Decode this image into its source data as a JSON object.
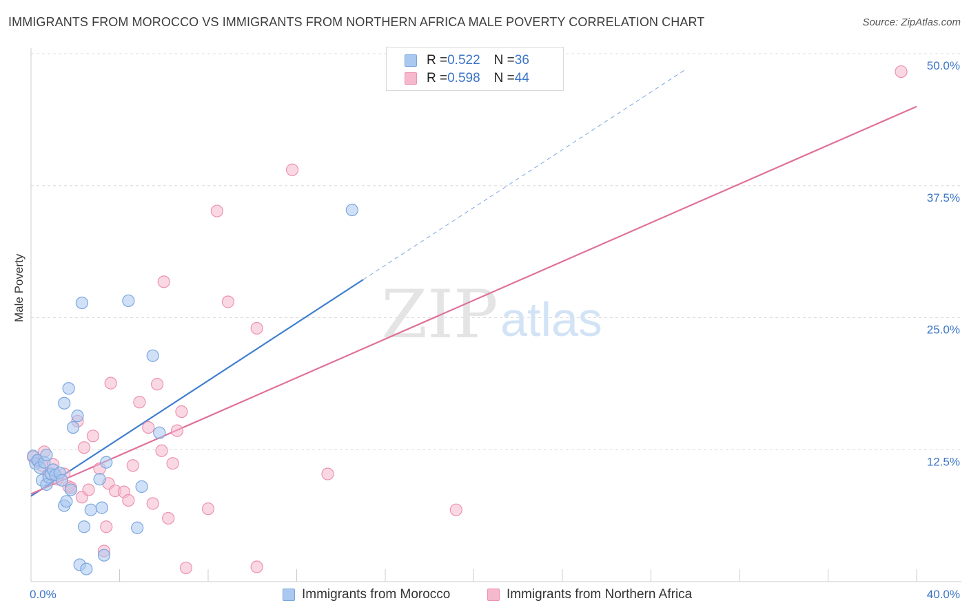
{
  "title": "IMMIGRANTS FROM MOROCCO VS IMMIGRANTS FROM NORTHERN AFRICA MALE POVERTY CORRELATION CHART",
  "source": "Source: ZipAtlas.com",
  "watermark": {
    "zip": "ZIP",
    "atlas": "atlas"
  },
  "legend": {
    "rows": [
      {
        "r_label": "R = ",
        "r_value": "0.522",
        "n_label": "N = ",
        "n_value": "36"
      },
      {
        "r_label": "R = ",
        "r_value": "0.598",
        "n_label": "N = ",
        "n_value": "44"
      }
    ]
  },
  "colors": {
    "blue_fill": "#aac8f0",
    "blue_stroke": "#7aa6de",
    "blue_line": "#3f7fd0",
    "pink_fill": "#f5b8cc",
    "pink_stroke": "#eb92b0",
    "pink_line": "#e0709a",
    "grid": "#dcdcdc",
    "tick_label": "#3a74c8"
  },
  "chart_data": {
    "type": "scatter",
    "title": "IMMIGRANTS FROM MOROCCO VS IMMIGRANTS FROM NORTHERN AFRICA MALE POVERTY CORRELATION CHART",
    "xlabel": "",
    "ylabel": "Male Poverty",
    "xlim": [
      0,
      40
    ],
    "ylim": [
      0,
      52
    ],
    "x_tick_labels": [
      "0.0%",
      "40.0%"
    ],
    "y_ticks": [
      12.5,
      25.0,
      37.5,
      50.0
    ],
    "y_tick_labels": [
      "12.5%",
      "25.0%",
      "37.5%",
      "50.0%"
    ],
    "grid": true,
    "legend_position": "top-center",
    "series": [
      {
        "name": "Immigrants from Morocco",
        "r": 0.522,
        "n": 36,
        "trend": {
          "x0": 0,
          "y0": 8.1,
          "x1": 15.0,
          "y1": 28.6,
          "dashed_to_x": 29.6
        },
        "points": [
          [
            0.1,
            11.9
          ],
          [
            0.2,
            11.2
          ],
          [
            0.3,
            11.5
          ],
          [
            0.4,
            10.8
          ],
          [
            0.5,
            9.6
          ],
          [
            0.6,
            11.3
          ],
          [
            0.7,
            12.0
          ],
          [
            0.7,
            9.2
          ],
          [
            0.8,
            9.9
          ],
          [
            0.9,
            10.2
          ],
          [
            1.0,
            10.6
          ],
          [
            1.1,
            10.1
          ],
          [
            1.3,
            10.3
          ],
          [
            1.4,
            9.6
          ],
          [
            1.5,
            7.2
          ],
          [
            1.6,
            7.6
          ],
          [
            1.8,
            8.7
          ],
          [
            1.9,
            14.6
          ],
          [
            2.1,
            15.7
          ],
          [
            1.5,
            16.9
          ],
          [
            1.7,
            18.3
          ],
          [
            2.3,
            26.4
          ],
          [
            2.4,
            5.2
          ],
          [
            2.7,
            6.8
          ],
          [
            3.1,
            9.7
          ],
          [
            3.2,
            7.0
          ],
          [
            3.4,
            11.3
          ],
          [
            2.2,
            1.6
          ],
          [
            2.5,
            1.2
          ],
          [
            3.3,
            2.5
          ],
          [
            4.4,
            26.6
          ],
          [
            4.8,
            5.1
          ],
          [
            5.0,
            9.0
          ],
          [
            5.5,
            21.4
          ],
          [
            5.8,
            14.1
          ],
          [
            14.5,
            35.2
          ]
        ]
      },
      {
        "name": "Immigrants from Northern Africa",
        "r": 0.598,
        "n": 44,
        "trend": {
          "x0": 0,
          "y0": 8.3,
          "x1": 40.0,
          "y1": 45.0
        },
        "points": [
          [
            0.1,
            11.8
          ],
          [
            0.3,
            11.4
          ],
          [
            0.5,
            11.0
          ],
          [
            0.6,
            12.3
          ],
          [
            0.8,
            10.1
          ],
          [
            1.0,
            11.1
          ],
          [
            1.2,
            9.7
          ],
          [
            1.5,
            10.2
          ],
          [
            1.7,
            9.0
          ],
          [
            1.8,
            8.9
          ],
          [
            2.1,
            15.2
          ],
          [
            2.3,
            8.0
          ],
          [
            2.4,
            12.7
          ],
          [
            2.6,
            8.7
          ],
          [
            2.8,
            13.8
          ],
          [
            3.1,
            10.7
          ],
          [
            3.3,
            2.9
          ],
          [
            3.4,
            5.2
          ],
          [
            3.5,
            9.3
          ],
          [
            3.6,
            18.8
          ],
          [
            3.8,
            8.6
          ],
          [
            4.2,
            8.5
          ],
          [
            4.4,
            7.7
          ],
          [
            4.6,
            11.0
          ],
          [
            4.9,
            17.0
          ],
          [
            5.3,
            14.6
          ],
          [
            5.5,
            7.4
          ],
          [
            5.7,
            18.7
          ],
          [
            5.9,
            12.4
          ],
          [
            6.0,
            28.4
          ],
          [
            6.2,
            6.0
          ],
          [
            6.4,
            11.2
          ],
          [
            6.6,
            14.3
          ],
          [
            6.8,
            16.1
          ],
          [
            7.0,
            1.3
          ],
          [
            8.0,
            6.9
          ],
          [
            8.4,
            35.1
          ],
          [
            8.9,
            26.5
          ],
          [
            10.2,
            24.0
          ],
          [
            10.2,
            1.4
          ],
          [
            11.8,
            39.0
          ],
          [
            13.4,
            10.2
          ],
          [
            19.2,
            6.8
          ],
          [
            39.3,
            48.3
          ]
        ]
      }
    ]
  },
  "bottom_legend": {
    "items": [
      {
        "label": "Immigrants from Morocco"
      },
      {
        "label": "Immigrants from Northern Africa"
      }
    ]
  }
}
